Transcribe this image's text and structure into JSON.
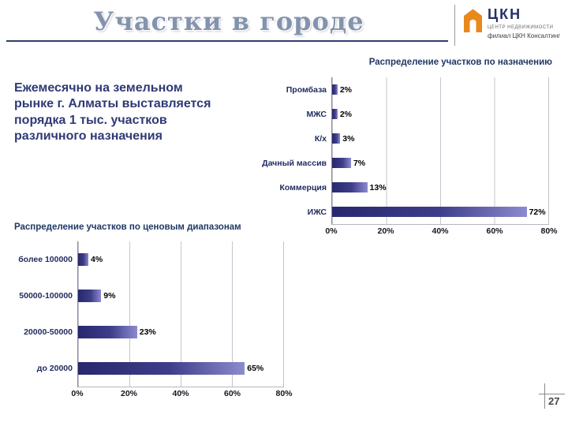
{
  "slide": {
    "title": "Участки в городе",
    "page_number": "27"
  },
  "logo": {
    "abbr": "ЦКН",
    "line1": "центр недвижимости",
    "line2": "филиал ЦКН Консалтинг",
    "brand_color": "#E8891C",
    "text_color": "#23306b"
  },
  "intro": {
    "lines": [
      "Ежемесячно на земельном",
      "рынке г. Алматы выставляется",
      "порядка 1 тыс. участков",
      "различного назначения"
    ]
  },
  "chart_data": [
    {
      "type": "bar",
      "orientation": "horizontal",
      "title": "Распределение участков по назначению",
      "categories": [
        "Промбаза",
        "МЖС",
        "К/х",
        "Дачный массив",
        "Коммерция",
        "ИЖС"
      ],
      "values": [
        2,
        2,
        3,
        7,
        13,
        72
      ],
      "value_labels": [
        "2%",
        "2%",
        "3%",
        "7%",
        "13%",
        "72%"
      ],
      "xlabel": "",
      "ylabel": "",
      "xlim": [
        0,
        80
      ],
      "x_ticks": [
        "0%",
        "20%",
        "40%",
        "60%",
        "80%"
      ],
      "grid": "vertical",
      "legend": false,
      "bar_color_dark": "#28286e",
      "bar_color_light": "#8d8bce"
    },
    {
      "type": "bar",
      "orientation": "horizontal",
      "title": "Распределение участков по ценовым диапазонам",
      "categories": [
        "более 100000",
        "50000-100000",
        "20000-50000",
        "до 20000"
      ],
      "values": [
        4,
        9,
        23,
        65
      ],
      "value_labels": [
        "4%",
        "9%",
        "23%",
        "65%"
      ],
      "xlabel": "",
      "ylabel": "",
      "xlim": [
        0,
        80
      ],
      "x_ticks": [
        "0%",
        "20%",
        "40%",
        "60%",
        "80%"
      ],
      "grid": "vertical",
      "legend": false,
      "bar_color_dark": "#28286e",
      "bar_color_light": "#8d8bce"
    }
  ]
}
